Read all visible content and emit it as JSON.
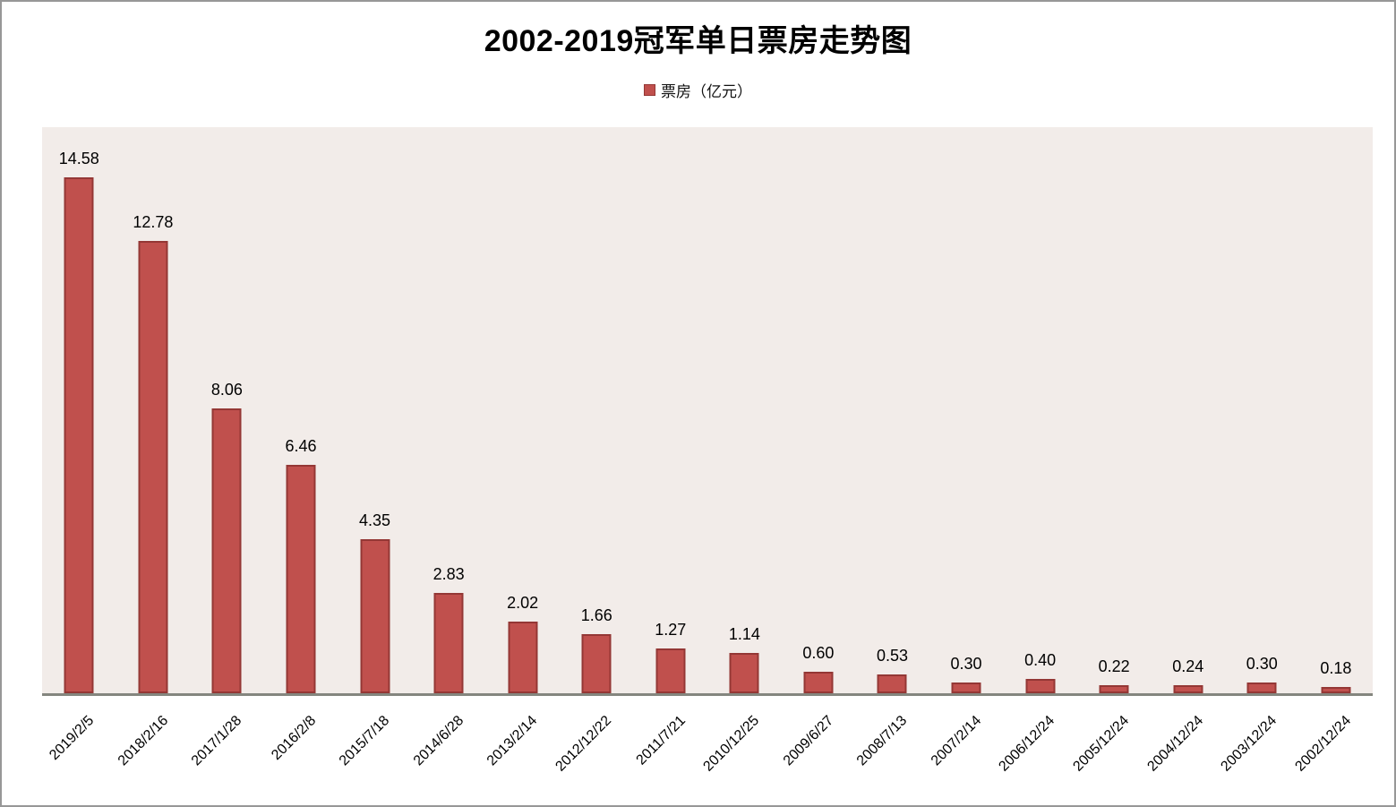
{
  "chart_data": {
    "type": "bar",
    "title": "2002-2019冠军单日票房走势图",
    "legend": {
      "label": "票房（亿元）",
      "position": "top-center"
    },
    "categories": [
      "2019/2/5",
      "2018/2/16",
      "2017/1/28",
      "2016/2/8",
      "2015/7/18",
      "2014/6/28",
      "2013/2/14",
      "2012/12/22",
      "2011/7/21",
      "2010/12/25",
      "2009/6/27",
      "2008/7/13",
      "2007/2/14",
      "2006/12/24",
      "2005/12/24",
      "2004/12/24",
      "2003/12/24",
      "2002/12/24"
    ],
    "values": [
      14.58,
      12.78,
      8.06,
      6.46,
      4.35,
      2.83,
      2.02,
      1.66,
      1.27,
      1.14,
      0.6,
      0.53,
      0.3,
      0.4,
      0.22,
      0.24,
      0.3,
      0.18
    ],
    "value_label_decimals": 2,
    "xlabel": "",
    "ylabel": "",
    "ylim": [
      0,
      16
    ],
    "grid": false,
    "x_tick_rotation_deg": 45,
    "colors": {
      "bar_fill": "#c0504d",
      "bar_border": "#943735",
      "plot_background": "#f2ece9",
      "axis_line": "#84867f",
      "frame_border": "#979797",
      "text": "#000000"
    }
  }
}
